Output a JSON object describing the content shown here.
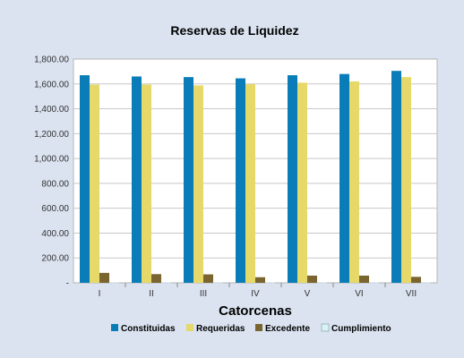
{
  "chart_data": {
    "type": "bar",
    "title": "Reservas de Liquidez",
    "xlabel": "Catorcenas",
    "ylabel": "",
    "categories": [
      "I",
      "II",
      "III",
      "IV",
      "V",
      "VI",
      "VII"
    ],
    "ylim": [
      0,
      1800
    ],
    "yticks": [
      "-",
      "200.00",
      "400.00",
      "600.00",
      "800.00",
      "1,000.00",
      "1,200.00",
      "1,400.00",
      "1,600.00",
      "1,800.00"
    ],
    "grid": true,
    "legend_position": "bottom",
    "series": [
      {
        "name": "Constituidas",
        "color": "#0a7db8",
        "values": [
          1670,
          1660,
          1655,
          1645,
          1670,
          1680,
          1705
        ]
      },
      {
        "name": "Requeridas",
        "color": "#e6d96a",
        "values": [
          1595,
          1595,
          1588,
          1598,
          1610,
          1620,
          1655
        ]
      },
      {
        "name": "Excedente",
        "color": "#7a6530",
        "values": [
          80,
          70,
          68,
          45,
          58,
          58,
          48
        ]
      },
      {
        "name": "Cumplimiento",
        "color": "#d7f4f4",
        "values": [
          2,
          2,
          2,
          2,
          2,
          2,
          2
        ]
      }
    ]
  }
}
